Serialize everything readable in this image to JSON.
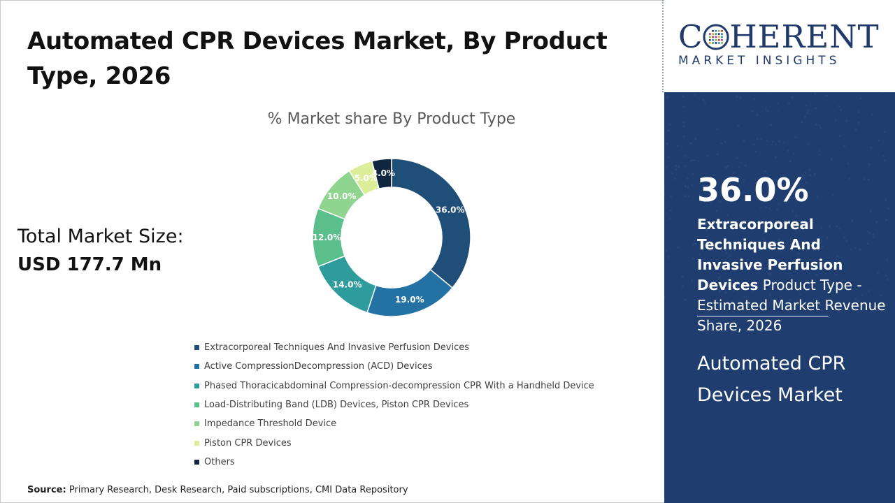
{
  "page": {
    "title": "Automated CPR Devices Market, By Product Type, 2026",
    "total_label": "Total Market Size:",
    "total_value": "USD 177.7 Mn",
    "source_label": "Source:",
    "source_text": "Primary Research, Desk Research, Paid subscriptions, CMI Data Repository"
  },
  "brand": {
    "word_pre": "C",
    "word_post": "HERENT",
    "sub": "MARKET INSIGHTS",
    "color": "#1f3a6b"
  },
  "panel": {
    "big_value": "36.0%",
    "desc_bold": "Extracorporeal Techniques And Invasive Perfusion Devices",
    "desc_rest": " Product Type - Estimated Market Revenue Share, 2026",
    "market_name": "Automated CPR Devices Market",
    "background": "#1f3d6e"
  },
  "chart_data": {
    "type": "pie",
    "title": "% Market share By Product Type",
    "donut": true,
    "legend_position": "bottom",
    "slices": [
      {
        "label": "Extracorporeal Techniques And Invasive Perfusion Devices",
        "value": 36.0,
        "display": "36.0%",
        "color": "#1f4e79"
      },
      {
        "label": "Active CompressionDecompression (ACD) Devices",
        "value": 19.0,
        "display": "19.0%",
        "color": "#2471a3"
      },
      {
        "label": "Phased Thoracicabdominal Compression-decompression CPR With a Handheld Device",
        "value": 14.0,
        "display": "14.0%",
        "color": "#2e9c9c"
      },
      {
        "label": "Load-Distributing Band (LDB) Devices, Piston CPR Devices",
        "value": 12.0,
        "display": "12.0%",
        "color": "#5bbf8c"
      },
      {
        "label": "Impedance Threshold Device",
        "value": 10.0,
        "display": "10.0%",
        "color": "#8fd48f"
      },
      {
        "label": "Piston CPR Devices",
        "value": 5.0,
        "display": "5.0%",
        "color": "#dcee9a"
      },
      {
        "label": "Others",
        "value": 4.0,
        "display": "4.0%",
        "color": "#10253f"
      }
    ]
  }
}
